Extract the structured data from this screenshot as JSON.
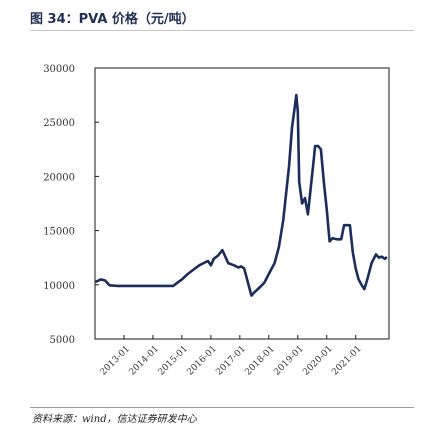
{
  "title": "图 34：PVA 价格（元/吨）",
  "source": "资料来源：wind，信达证券研发中心",
  "chart_data": {
    "type": "line",
    "title": "图 34：PVA 价格（元/吨）",
    "xlabel": "",
    "ylabel": "",
    "ylim": [
      5000,
      30000
    ],
    "yticks": [
      5000,
      10000,
      15000,
      20000,
      25000,
      30000
    ],
    "yticklabels": [
      "5000",
      "10000",
      "15000",
      "20000",
      "25000",
      "30000"
    ],
    "xticklabels": [
      "2013-01",
      "2014-01",
      "2015-01",
      "2016-01",
      "2017-01",
      "2018-01",
      "2019-01",
      "2020-01",
      "2021-01"
    ],
    "grid": false,
    "legend": "none",
    "line_color": "#1b2d5c",
    "series": [
      {
        "name": "",
        "x": [
          2012.05,
          2012.2,
          2012.35,
          2012.5,
          2012.8,
          2013.2,
          2013.6,
          2014.0,
          2014.4,
          2014.7,
          2014.85,
          2015.0,
          2015.2,
          2015.4,
          2015.6,
          2015.75,
          2015.9,
          2016.0,
          2016.1,
          2016.25,
          2016.4,
          2016.6,
          2016.8,
          2016.95,
          2017.05,
          2017.15,
          2017.25,
          2017.4,
          2017.5,
          2017.7,
          2017.85,
          2018.0,
          2018.1,
          2018.2,
          2018.35,
          2018.5,
          2018.6,
          2018.7,
          2018.8,
          2018.9,
          2018.95,
          2019.0,
          2019.05,
          2019.15,
          2019.25,
          2019.35,
          2019.45,
          2019.55,
          2019.6,
          2019.7,
          2019.8,
          2019.9,
          2020.0,
          2020.1,
          2020.2,
          2020.35,
          2020.5,
          2020.6,
          2020.7,
          2020.8,
          2020.9,
          2021.0,
          2021.1,
          2021.2,
          2021.3,
          2021.4,
          2021.55,
          2021.7,
          2021.8,
          2021.9,
          2022.0,
          2022.05
        ],
        "values": [
          10300,
          10500,
          10400,
          9950,
          9900,
          9900,
          9900,
          9900,
          9900,
          9900,
          10200,
          10500,
          11000,
          11400,
          11800,
          12000,
          12200,
          11800,
          12400,
          12700,
          13200,
          12000,
          11800,
          11600,
          11700,
          11500,
          10500,
          9000,
          9300,
          9800,
          10200,
          11000,
          11500,
          12000,
          13500,
          16000,
          18500,
          21000,
          24500,
          26500,
          27500,
          26000,
          19500,
          17500,
          18000,
          16500,
          19000,
          21500,
          22800,
          22800,
          22500,
          19500,
          17000,
          14000,
          14300,
          14200,
          14200,
          15500,
          15500,
          15500,
          13000,
          11500,
          10500,
          10000,
          9600,
          10500,
          12000,
          12800,
          12500,
          12600,
          12400,
          12500
        ]
      }
    ]
  }
}
